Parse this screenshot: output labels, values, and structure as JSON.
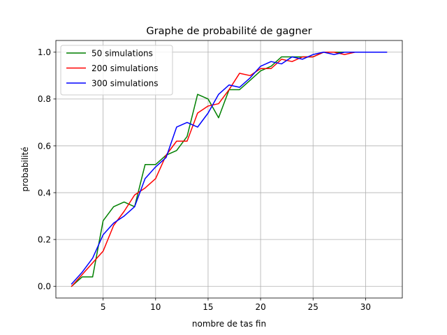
{
  "chart_data": {
    "type": "line",
    "title": "Graphe de probabilité de gagner",
    "xlabel": "nombre de tas fin",
    "ylabel": "probabilité",
    "xlim": [
      0.5,
      33.5
    ],
    "ylim": [
      -0.05,
      1.05
    ],
    "xticks": [
      5,
      10,
      15,
      20,
      25,
      30
    ],
    "yticks": [
      0.0,
      0.2,
      0.4,
      0.6,
      0.8,
      1.0
    ],
    "xtick_labels": [
      "5",
      "10",
      "15",
      "20",
      "25",
      "30"
    ],
    "ytick_labels": [
      "0.0",
      "0.2",
      "0.4",
      "0.6",
      "0.8",
      "1.0"
    ],
    "grid": true,
    "legend_position": "top-left",
    "x": [
      2,
      3,
      4,
      5,
      6,
      7,
      8,
      9,
      10,
      11,
      12,
      13,
      14,
      15,
      16,
      17,
      18,
      19,
      20,
      21,
      22,
      23,
      24,
      25,
      26,
      27,
      28,
      29,
      30,
      31,
      32
    ],
    "series": [
      {
        "name": "50 simulations",
        "color": "#008000",
        "values": [
          0.0,
          0.04,
          0.04,
          0.28,
          0.34,
          0.36,
          0.34,
          0.52,
          0.52,
          0.56,
          0.58,
          0.64,
          0.82,
          0.8,
          0.72,
          0.84,
          0.84,
          0.88,
          0.92,
          0.94,
          0.98,
          0.98,
          0.98,
          0.98,
          1.0,
          1.0,
          1.0,
          1.0,
          1.0,
          1.0,
          1.0
        ]
      },
      {
        "name": "200 simulations",
        "color": "#ff0000",
        "values": [
          0.0,
          0.05,
          0.1,
          0.15,
          0.26,
          0.32,
          0.39,
          0.42,
          0.46,
          0.56,
          0.62,
          0.62,
          0.74,
          0.77,
          0.78,
          0.84,
          0.91,
          0.9,
          0.93,
          0.93,
          0.97,
          0.96,
          0.98,
          0.98,
          1.0,
          1.0,
          0.99,
          1.0,
          1.0,
          1.0,
          1.0
        ]
      },
      {
        "name": "300 simulations",
        "color": "#0000ff",
        "values": [
          0.01,
          0.06,
          0.12,
          0.22,
          0.27,
          0.3,
          0.34,
          0.46,
          0.51,
          0.55,
          0.68,
          0.7,
          0.68,
          0.74,
          0.82,
          0.86,
          0.85,
          0.89,
          0.94,
          0.96,
          0.95,
          0.98,
          0.97,
          0.99,
          1.0,
          0.99,
          1.0,
          1.0,
          1.0,
          1.0,
          1.0
        ]
      }
    ]
  }
}
